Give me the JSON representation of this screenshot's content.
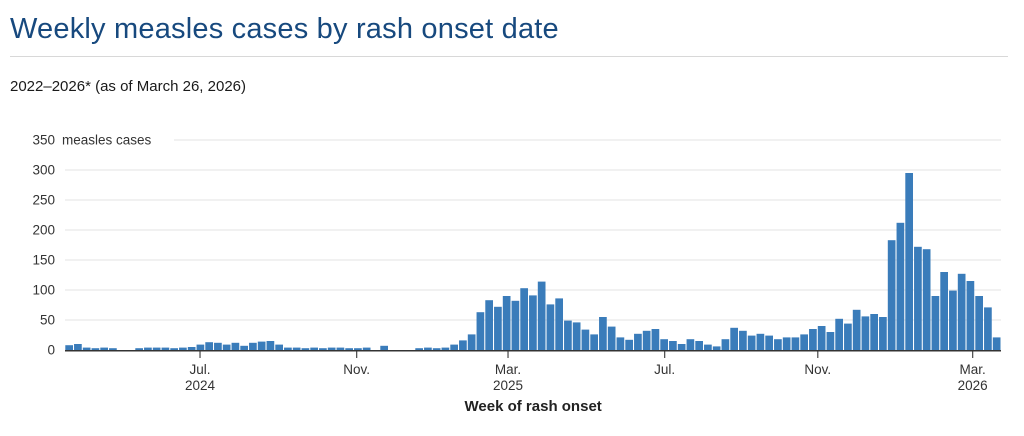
{
  "header": {
    "title": "Weekly measles cases by rash onset date",
    "subtitle": "2022–2026* (as of March 26, 2026)"
  },
  "colors": {
    "title": "#17497e",
    "bar": "#3a7cba",
    "grid": "#e3e3e3",
    "axis": "#333333",
    "tick": "#555555",
    "divider": "#d8d8d8",
    "label_text": "#333333",
    "xlabel_text": "#222222"
  },
  "chart_data": {
    "type": "bar",
    "title": "Weekly measles cases by rash onset date",
    "subtitle": "2022–2026* (as of March 26, 2026)",
    "xlabel": "Week of rash onset",
    "ylabel_top_unit": "measles cases",
    "ylabel_top_full": "350 measles cases",
    "ylim": [
      0,
      350
    ],
    "y_ticks": [
      0,
      50,
      100,
      150,
      200,
      250,
      300,
      350
    ],
    "grid": true,
    "legend": "none",
    "x_unit": "week",
    "x_ticks": [
      {
        "label": "Jul.",
        "sublabel": "2024",
        "index": 14.9
      },
      {
        "label": "Nov.",
        "sublabel": "",
        "index": 32.8
      },
      {
        "label": "Mar.",
        "sublabel": "2025",
        "index": 50.1
      },
      {
        "label": "Jul.",
        "sublabel": "",
        "index": 68.0
      },
      {
        "label": "Nov.",
        "sublabel": "",
        "index": 85.5
      },
      {
        "label": "Mar.",
        "sublabel": "2026",
        "index": 103.2
      }
    ],
    "values": [
      8,
      10,
      4,
      3,
      4,
      3,
      0,
      0,
      3,
      4,
      4,
      4,
      3,
      4,
      5,
      9,
      13,
      12,
      9,
      12,
      7,
      12,
      14,
      15,
      9,
      4,
      4,
      3,
      4,
      3,
      4,
      4,
      3,
      3,
      4,
      0,
      7,
      0,
      0,
      0,
      3,
      4,
      3,
      4,
      9,
      16,
      26,
      63,
      83,
      72,
      90,
      82,
      103,
      91,
      114,
      76,
      86,
      49,
      46,
      34,
      26,
      55,
      39,
      21,
      17,
      27,
      32,
      35,
      18,
      15,
      10,
      18,
      15,
      9,
      6,
      18,
      37,
      32,
      24,
      27,
      24,
      18,
      21,
      21,
      26,
      35,
      40,
      30,
      52,
      44,
      67,
      56,
      60,
      55,
      183,
      212,
      295,
      172,
      168,
      90,
      130,
      99,
      127,
      115,
      90,
      71,
      21
    ]
  }
}
